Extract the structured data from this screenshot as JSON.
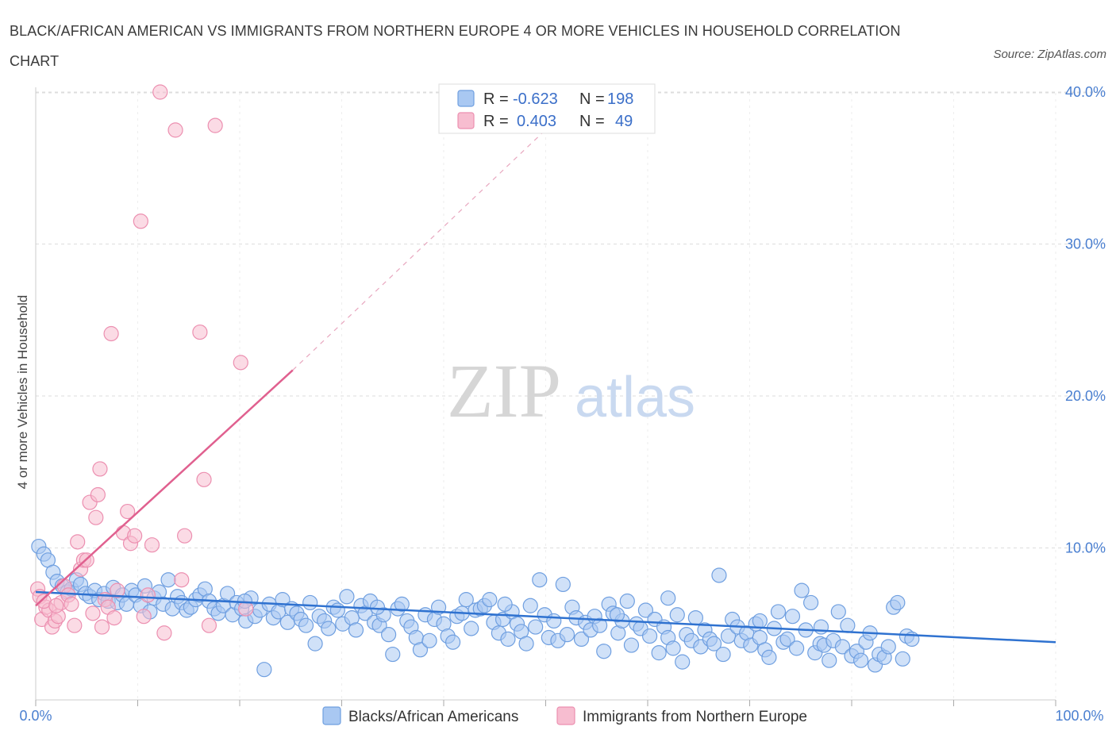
{
  "title": "BLACK/AFRICAN AMERICAN VS IMMIGRANTS FROM NORTHERN EUROPE 4 OR MORE VEHICLES IN HOUSEHOLD CORRELATION CHART",
  "source": "Source: ZipAtlas.com",
  "colors": {
    "blue_fill": "#a9c8f2",
    "blue_stroke": "#6f9fe0",
    "blue_line": "#2f72d0",
    "pink_fill": "#f7bdd0",
    "pink_stroke": "#ec8fb0",
    "pink_line": "#e0608f",
    "grid": "#dddddd",
    "tick_text": "#4a7fd0"
  },
  "watermark": {
    "zip": "ZIP",
    "atlas": "atlas"
  },
  "legend": {
    "rows": [
      {
        "r_label": "R =",
        "r_value": "-0.623",
        "n_label": "N =",
        "n_value": "198"
      },
      {
        "r_label": "R =",
        "r_value": "0.403",
        "n_label": "N =",
        "n_value": "49"
      }
    ]
  },
  "chart_data": {
    "type": "scatter",
    "title": "BLACK/AFRICAN AMERICAN VS IMMIGRANTS FROM NORTHERN EUROPE 4 OR MORE VEHICLES IN HOUSEHOLD CORRELATION CHART",
    "xlabel": "",
    "ylabel": "4 or more Vehicles in Household",
    "xlim": [
      0,
      100
    ],
    "ylim": [
      0,
      42
    ],
    "x_tick_labels": [
      "0.0%",
      "100.0%"
    ],
    "y_ticks": [
      10,
      20,
      30,
      40
    ],
    "y_tick_labels": [
      "10.0%",
      "20.0%",
      "30.0%",
      "40.0%"
    ],
    "grid": true,
    "legend_position": "bottom",
    "series": [
      {
        "name": "Blacks/African Americans",
        "color": "#a9c8f2",
        "r": -0.623,
        "n": 198,
        "trend": {
          "x": [
            0,
            100
          ],
          "y": [
            7.1,
            3.8
          ]
        },
        "points": [
          [
            0.3,
            10.1
          ],
          [
            0.8,
            9.6
          ],
          [
            1.2,
            9.2
          ],
          [
            1.7,
            8.4
          ],
          [
            2.1,
            7.8
          ],
          [
            2.6,
            7.5
          ],
          [
            3.1,
            7.1
          ],
          [
            3.5,
            7.3
          ],
          [
            4.0,
            7.9
          ],
          [
            4.4,
            7.6
          ],
          [
            4.9,
            7.0
          ],
          [
            5.3,
            6.8
          ],
          [
            5.8,
            7.2
          ],
          [
            6.2,
            6.6
          ],
          [
            6.7,
            7.0
          ],
          [
            7.1,
            6.5
          ],
          [
            7.6,
            7.4
          ],
          [
            8.0,
            6.4
          ],
          [
            8.5,
            6.9
          ],
          [
            8.9,
            6.3
          ],
          [
            9.4,
            7.2
          ],
          [
            9.8,
            6.9
          ],
          [
            10.3,
            6.2
          ],
          [
            10.7,
            7.5
          ],
          [
            11.2,
            5.8
          ],
          [
            11.6,
            6.7
          ],
          [
            12.1,
            7.1
          ],
          [
            12.5,
            6.3
          ],
          [
            13.0,
            7.9
          ],
          [
            13.4,
            6.0
          ],
          [
            13.9,
            6.8
          ],
          [
            14.3,
            6.4
          ],
          [
            14.8,
            5.9
          ],
          [
            15.2,
            6.1
          ],
          [
            15.7,
            6.6
          ],
          [
            16.1,
            6.9
          ],
          [
            16.6,
            7.3
          ],
          [
            17.0,
            6.5
          ],
          [
            17.5,
            6.0
          ],
          [
            17.9,
            5.7
          ],
          [
            18.4,
            6.2
          ],
          [
            18.8,
            7.0
          ],
          [
            19.3,
            5.6
          ],
          [
            19.7,
            6.4
          ],
          [
            20.2,
            6.0
          ],
          [
            20.6,
            5.2
          ],
          [
            21.1,
            6.7
          ],
          [
            21.5,
            5.5
          ],
          [
            22.0,
            5.9
          ],
          [
            22.4,
            2.0
          ],
          [
            22.9,
            6.3
          ],
          [
            23.3,
            5.4
          ],
          [
            23.8,
            5.8
          ],
          [
            24.2,
            6.6
          ],
          [
            24.7,
            5.1
          ],
          [
            25.1,
            6.0
          ],
          [
            25.6,
            5.7
          ],
          [
            26.0,
            5.3
          ],
          [
            26.5,
            4.9
          ],
          [
            26.9,
            6.4
          ],
          [
            27.4,
            3.7
          ],
          [
            27.8,
            5.5
          ],
          [
            28.3,
            5.2
          ],
          [
            28.7,
            4.7
          ],
          [
            29.2,
            6.1
          ],
          [
            29.6,
            5.9
          ],
          [
            30.1,
            5.0
          ],
          [
            30.5,
            6.8
          ],
          [
            31.0,
            5.4
          ],
          [
            31.4,
            4.6
          ],
          [
            31.9,
            6.2
          ],
          [
            32.3,
            5.7
          ],
          [
            32.8,
            6.5
          ],
          [
            33.2,
            5.1
          ],
          [
            33.7,
            4.9
          ],
          [
            34.1,
            5.6
          ],
          [
            34.6,
            4.3
          ],
          [
            35.0,
            3.0
          ],
          [
            35.5,
            6.0
          ],
          [
            35.9,
            6.3
          ],
          [
            36.4,
            5.2
          ],
          [
            36.8,
            4.8
          ],
          [
            37.3,
            4.1
          ],
          [
            37.7,
            3.3
          ],
          [
            38.2,
            5.6
          ],
          [
            38.6,
            3.9
          ],
          [
            39.1,
            5.3
          ],
          [
            39.5,
            6.1
          ],
          [
            40.0,
            5.0
          ],
          [
            40.4,
            4.2
          ],
          [
            40.9,
            3.8
          ],
          [
            41.3,
            5.5
          ],
          [
            41.8,
            5.7
          ],
          [
            42.2,
            6.6
          ],
          [
            42.7,
            4.7
          ],
          [
            43.1,
            5.9
          ],
          [
            43.6,
            6.0
          ],
          [
            44.0,
            6.2
          ],
          [
            44.5,
            6.6
          ],
          [
            44.9,
            5.1
          ],
          [
            45.4,
            4.4
          ],
          [
            45.8,
            5.3
          ],
          [
            46.3,
            4.0
          ],
          [
            46.7,
            5.8
          ],
          [
            47.2,
            5.0
          ],
          [
            47.6,
            4.5
          ],
          [
            48.1,
            3.7
          ],
          [
            48.5,
            6.2
          ],
          [
            49.0,
            4.8
          ],
          [
            49.4,
            7.9
          ],
          [
            49.9,
            5.6
          ],
          [
            50.3,
            4.1
          ],
          [
            50.8,
            5.2
          ],
          [
            51.2,
            3.9
          ],
          [
            51.7,
            7.6
          ],
          [
            52.1,
            4.3
          ],
          [
            52.6,
            6.1
          ],
          [
            53.0,
            5.4
          ],
          [
            53.5,
            4.0
          ],
          [
            53.9,
            5.1
          ],
          [
            54.4,
            4.6
          ],
          [
            54.8,
            5.5
          ],
          [
            55.3,
            4.9
          ],
          [
            55.7,
            3.2
          ],
          [
            56.2,
            6.3
          ],
          [
            56.6,
            5.7
          ],
          [
            57.1,
            4.4
          ],
          [
            57.5,
            5.2
          ],
          [
            58.0,
            6.5
          ],
          [
            58.4,
            3.6
          ],
          [
            58.9,
            5.0
          ],
          [
            59.3,
            4.7
          ],
          [
            59.8,
            5.9
          ],
          [
            60.2,
            4.2
          ],
          [
            60.7,
            5.3
          ],
          [
            61.1,
            3.1
          ],
          [
            61.6,
            4.8
          ],
          [
            62.0,
            4.1
          ],
          [
            62.5,
            3.4
          ],
          [
            62.9,
            5.6
          ],
          [
            63.4,
            2.5
          ],
          [
            63.8,
            4.3
          ],
          [
            64.3,
            3.9
          ],
          [
            64.7,
            5.4
          ],
          [
            65.2,
            3.5
          ],
          [
            65.6,
            4.6
          ],
          [
            66.1,
            4.0
          ],
          [
            66.5,
            3.7
          ],
          [
            67.0,
            8.2
          ],
          [
            67.4,
            3.0
          ],
          [
            67.9,
            4.2
          ],
          [
            68.3,
            5.3
          ],
          [
            68.8,
            4.8
          ],
          [
            69.2,
            3.9
          ],
          [
            69.7,
            4.4
          ],
          [
            70.1,
            3.6
          ],
          [
            70.6,
            5.0
          ],
          [
            71.0,
            4.1
          ],
          [
            71.5,
            3.3
          ],
          [
            71.9,
            2.8
          ],
          [
            72.4,
            4.7
          ],
          [
            72.8,
            5.8
          ],
          [
            73.3,
            3.8
          ],
          [
            73.7,
            4.0
          ],
          [
            74.2,
            5.5
          ],
          [
            74.6,
            3.4
          ],
          [
            75.1,
            7.2
          ],
          [
            75.5,
            4.6
          ],
          [
            76.0,
            6.4
          ],
          [
            76.4,
            3.1
          ],
          [
            76.9,
            3.7
          ],
          [
            77.3,
            3.6
          ],
          [
            77.8,
            2.6
          ],
          [
            78.2,
            3.9
          ],
          [
            78.7,
            5.8
          ],
          [
            79.1,
            3.5
          ],
          [
            79.6,
            4.9
          ],
          [
            80.0,
            2.9
          ],
          [
            80.5,
            3.2
          ],
          [
            80.9,
            2.6
          ],
          [
            81.4,
            3.8
          ],
          [
            81.8,
            4.4
          ],
          [
            82.3,
            2.3
          ],
          [
            82.7,
            3.0
          ],
          [
            83.2,
            2.8
          ],
          [
            83.6,
            3.5
          ],
          [
            84.1,
            6.1
          ],
          [
            84.5,
            6.4
          ],
          [
            85.0,
            2.7
          ],
          [
            85.4,
            4.2
          ],
          [
            85.9,
            4.0
          ],
          [
            20.5,
            6.5
          ],
          [
            33.5,
            6.1
          ],
          [
            46.0,
            6.3
          ],
          [
            57.0,
            5.6
          ],
          [
            62.0,
            6.7
          ],
          [
            71.0,
            5.2
          ],
          [
            77.0,
            4.8
          ]
        ]
      },
      {
        "name": "Immigrants from Northern Europe",
        "color": "#f7bdd0",
        "r": 0.403,
        "n": 49,
        "trend": {
          "x": [
            0,
            25.2
          ],
          "y": [
            6.2,
            21.7
          ]
        },
        "trend_dashed": {
          "x": [
            25.2,
            52.0
          ],
          "y": [
            21.7,
            38.8
          ]
        },
        "points": [
          [
            0.2,
            7.3
          ],
          [
            0.4,
            6.8
          ],
          [
            0.6,
            5.3
          ],
          [
            1.0,
            6.1
          ],
          [
            1.3,
            5.9
          ],
          [
            1.6,
            4.8
          ],
          [
            1.9,
            5.2
          ],
          [
            2.2,
            5.5
          ],
          [
            2.5,
            6.4
          ],
          [
            2.8,
            7.5
          ],
          [
            3.2,
            6.9
          ],
          [
            3.5,
            6.3
          ],
          [
            3.8,
            4.9
          ],
          [
            4.1,
            10.4
          ],
          [
            4.4,
            8.6
          ],
          [
            4.7,
            9.2
          ],
          [
            5.0,
            9.2
          ],
          [
            5.3,
            13.0
          ],
          [
            5.6,
            5.7
          ],
          [
            5.9,
            12.0
          ],
          [
            6.1,
            13.5
          ],
          [
            6.3,
            15.2
          ],
          [
            6.5,
            4.8
          ],
          [
            6.8,
            6.6
          ],
          [
            7.1,
            6.1
          ],
          [
            7.4,
            24.1
          ],
          [
            7.7,
            5.4
          ],
          [
            8.0,
            7.2
          ],
          [
            8.6,
            11.0
          ],
          [
            9.0,
            12.4
          ],
          [
            9.3,
            10.3
          ],
          [
            9.7,
            10.8
          ],
          [
            10.3,
            31.5
          ],
          [
            10.6,
            5.5
          ],
          [
            11.0,
            6.9
          ],
          [
            11.4,
            10.2
          ],
          [
            12.2,
            40.0
          ],
          [
            12.6,
            4.4
          ],
          [
            13.7,
            37.5
          ],
          [
            14.3,
            7.9
          ],
          [
            14.6,
            10.8
          ],
          [
            16.1,
            24.2
          ],
          [
            16.5,
            14.5
          ],
          [
            17.0,
            4.9
          ],
          [
            17.6,
            37.8
          ],
          [
            20.1,
            22.2
          ],
          [
            20.6,
            6.0
          ],
          [
            0.8,
            6.5
          ],
          [
            2.0,
            6.2
          ]
        ]
      }
    ]
  },
  "bottom_legend": {
    "items": [
      {
        "label": "Blacks/African Americans"
      },
      {
        "label": "Immigrants from Northern Europe"
      }
    ]
  }
}
